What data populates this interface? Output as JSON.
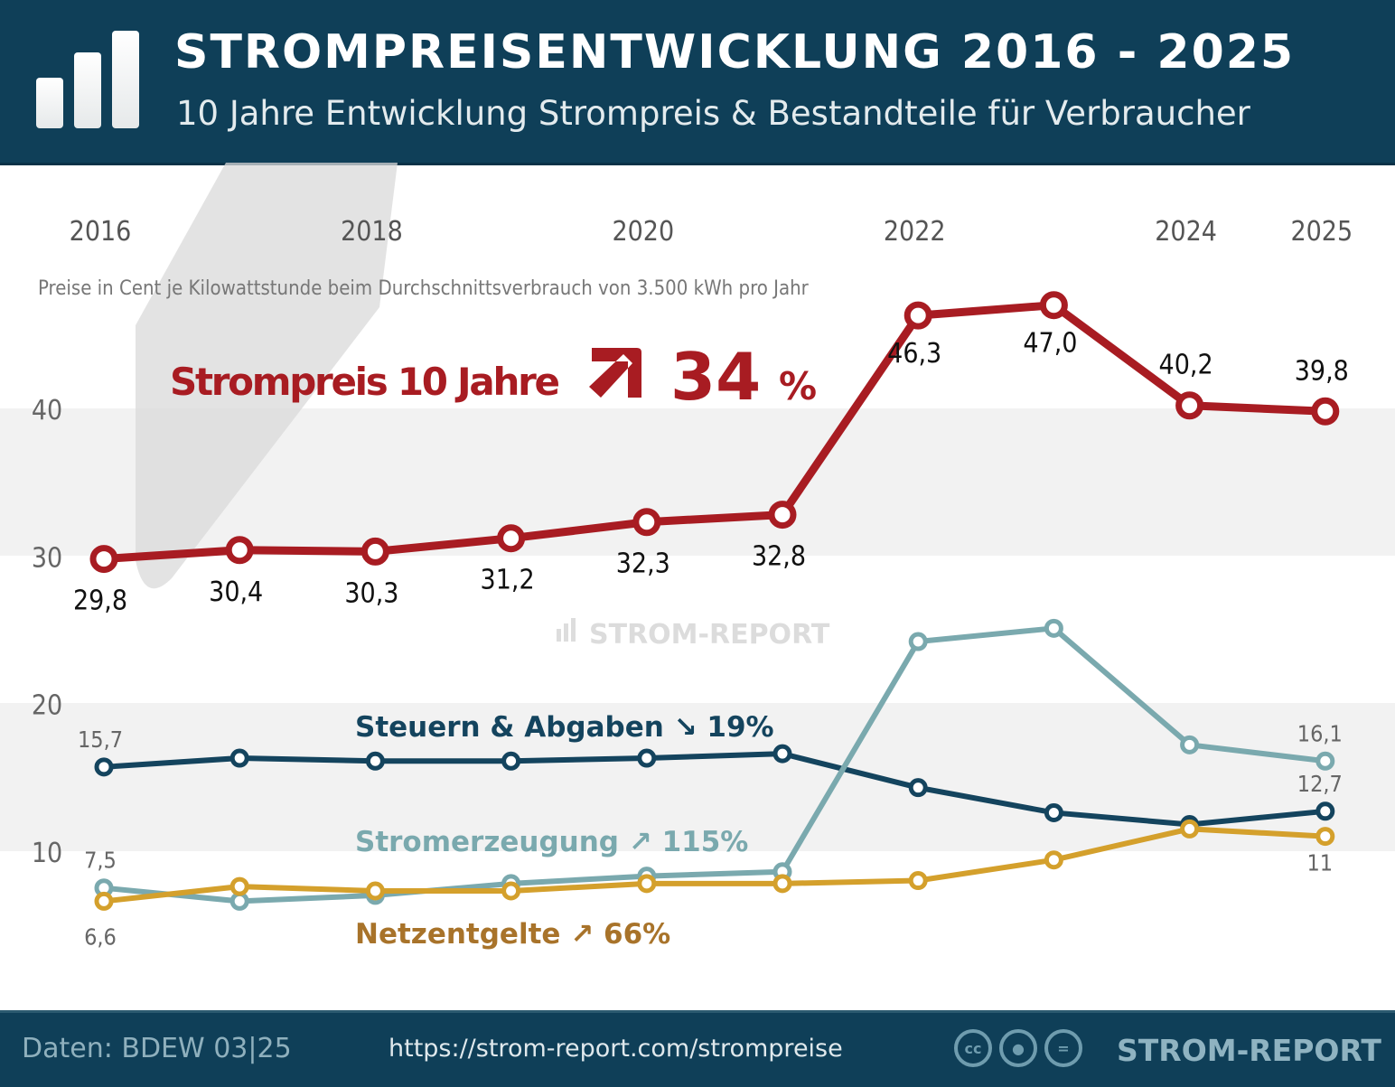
{
  "header": {
    "title": "STROMPREISENTWICKLUNG 2016 - 2025",
    "subtitle": "10 Jahre Entwicklung Strompreis & Bestandteile für Verbraucher",
    "logo_icon": "bar-chart-icon"
  },
  "footer": {
    "source": "Daten: BDEW 03|25",
    "url": "https://strom-report.com/strompreise",
    "license_icons": [
      "cc-icon",
      "by-icon",
      "nd-icon"
    ],
    "license_cc_text": "cc",
    "brand": "STROM-REPORT"
  },
  "watermark": "STROM-REPORT",
  "chart_data": {
    "type": "line",
    "subtitle": "Preise in Cent je Kilowattstunde beim Durchschnittsverbrauch von 3.500 kWh pro Jahr",
    "x": [
      2016,
      2017,
      2018,
      2019,
      2020,
      2021,
      2022,
      2023,
      2024,
      2025
    ],
    "x_tick_labels": [
      "2016",
      "2018",
      "2020",
      "2022",
      "2024",
      "2025"
    ],
    "y_tick_labels": [
      "10",
      "20",
      "30",
      "40"
    ],
    "ylim": [
      0,
      50
    ],
    "headline": {
      "text": "Strompreis 10 Jahre",
      "value": "34",
      "unit": "%",
      "arrow": "up-right"
    },
    "series": [
      {
        "name": "Strompreis",
        "color": "#a81c22",
        "values": [
          29.8,
          30.4,
          30.3,
          31.2,
          32.3,
          32.8,
          46.3,
          47.0,
          40.2,
          39.8
        ],
        "labels": [
          "29,8",
          "30,4",
          "30,3",
          "31,2",
          "32,3",
          "32,8",
          "46,3",
          "47,0",
          "40,2",
          "39,8"
        ]
      },
      {
        "name": "Steuern & Abgaben",
        "change": "19%",
        "arrow": "down-right",
        "color": "#14445e",
        "values": [
          15.7,
          16.3,
          16.1,
          16.1,
          16.3,
          16.6,
          14.3,
          12.6,
          11.8,
          12.7
        ],
        "labels": {
          "first": "15,7",
          "last": "12,7"
        }
      },
      {
        "name": "Stromerzeugung",
        "change": "115%",
        "arrow": "up-right",
        "color": "#7aa9ae",
        "values": [
          7.5,
          6.6,
          7.0,
          7.8,
          8.3,
          8.6,
          24.2,
          25.1,
          17.2,
          16.1
        ],
        "labels": {
          "first": "7,5",
          "last": "16,1"
        }
      },
      {
        "name": "Netzentgelte",
        "change": "66%",
        "arrow": "up-right",
        "color": "#d4a02c",
        "label_color": "#a8732a",
        "values": [
          6.6,
          7.6,
          7.3,
          7.3,
          7.8,
          7.8,
          8.0,
          9.4,
          11.5,
          11.0
        ],
        "labels": {
          "first": "6,6",
          "last": "11"
        }
      }
    ]
  }
}
